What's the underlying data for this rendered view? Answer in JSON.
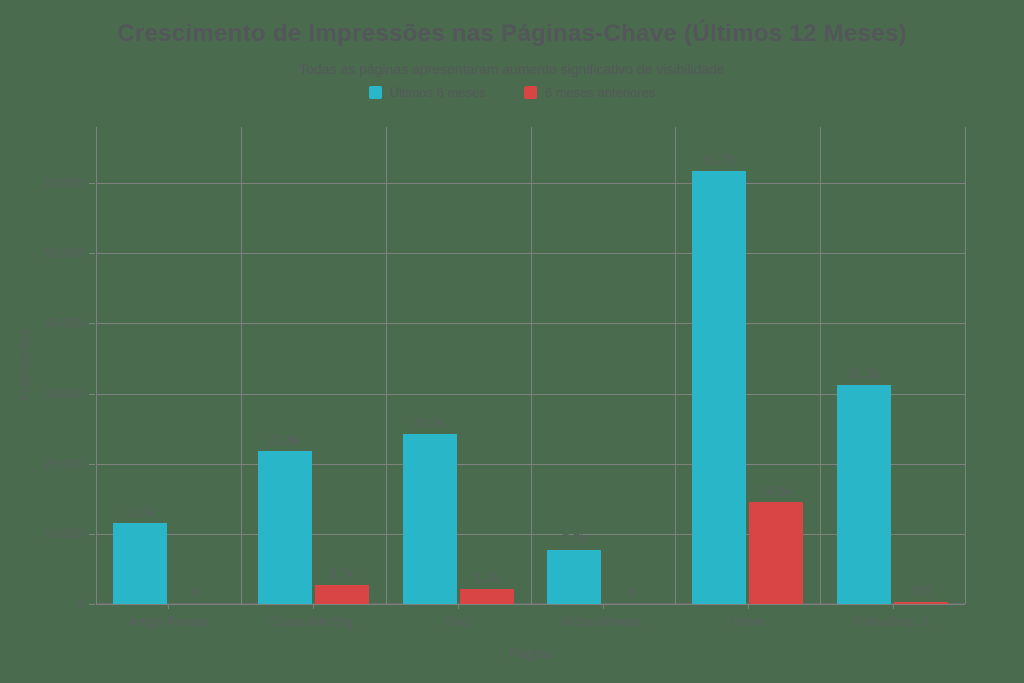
{
  "header": {
    "title": "Crescimento de Impressões nas Páginas-Chave (Últimos 12 Meses)",
    "subtitle": "Todas as páginas apresentaram aumento significativo de visibilidade"
  },
  "legend": {
    "items": [
      {
        "label": "Últimos 6 meses",
        "color": "#29b6c8"
      },
      {
        "label": "6 meses anteriores",
        "color": "#d94545"
      }
    ]
  },
  "axes": {
    "x_title": "Página",
    "y_title": "Impressões"
  },
  "colors": {
    "background": "#4a6b4e",
    "grid": "#7d827e",
    "axis_line": "#666c68",
    "title_text": "#53575a",
    "tick_text": "#5a5f61"
  },
  "chart_data": {
    "type": "bar",
    "title": "Crescimento de Impressões nas Páginas-Chave (Últimos 12 Meses)",
    "subtitle": "Todas as páginas apresentaram aumento significativo de visibilidade",
    "xlabel": "Página",
    "ylabel": "Impressões",
    "categories": [
      "Artigo Prompt",
      "Curso Mkt Dig.",
      "FAQ",
      "Ficha Aliment.",
      "Home",
      "Trilha Emp. J."
    ],
    "series": [
      {
        "name": "Últimos 6 meses",
        "color": "#29b6c8",
        "values": [
          11600,
          21800,
          24300,
          7700,
          61700,
          31200
        ],
        "labels": [
          "11.6k",
          "21.8k",
          "24.3k",
          "7.7k",
          "61.7k",
          "31.2k"
        ]
      },
      {
        "name": "6 meses anteriores",
        "color": "#d94545",
        "values": [
          0,
          2700,
          2200,
          0,
          14500,
          158
        ],
        "labels": [
          "0",
          "2.7k",
          "2.2k",
          "0",
          "14.5k",
          "158"
        ]
      }
    ],
    "ylim": [
      0,
      68000
    ],
    "yticks": [
      0,
      10000,
      20000,
      30000,
      40000,
      50000,
      60000
    ],
    "ytick_labels": [
      "0",
      "10,000",
      "20,000",
      "30,000",
      "40,000",
      "50,000",
      "60,000"
    ],
    "grid": true,
    "legend_position": "top"
  }
}
